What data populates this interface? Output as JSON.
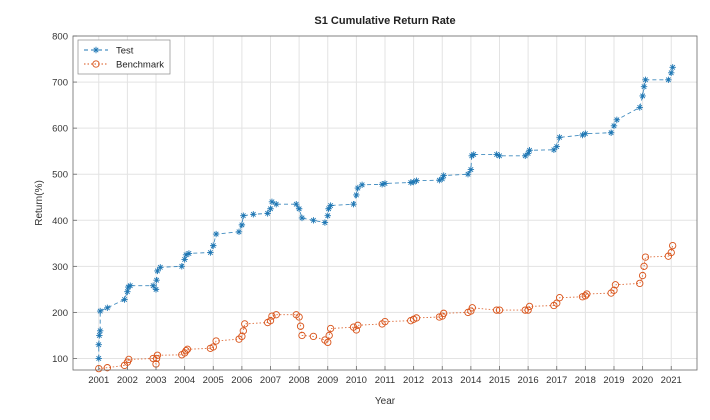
{
  "chart_data": {
    "type": "line",
    "title": "S1 Cumulative Return Rate",
    "xlabel": "Year",
    "ylabel": "Return(%)",
    "xlim": [
      2000.1,
      2021.9
    ],
    "ylim": [
      75,
      800
    ],
    "xticks": [
      2001,
      2002,
      2003,
      2004,
      2005,
      2006,
      2007,
      2008,
      2009,
      2010,
      2011,
      2012,
      2013,
      2014,
      2015,
      2016,
      2017,
      2018,
      2019,
      2020,
      2021
    ],
    "yticks": [
      100,
      200,
      300,
      400,
      500,
      600,
      700,
      800
    ],
    "grid": true,
    "legend_position": "top-left",
    "series": [
      {
        "name": "Test",
        "color": "#1f77b4",
        "marker": "star",
        "line": "dashed",
        "points": [
          [
            2001.0,
            100
          ],
          [
            2001.0,
            130
          ],
          [
            2001.02,
            150
          ],
          [
            2001.05,
            160
          ],
          [
            2001.05,
            203
          ],
          [
            2001.3,
            210
          ],
          [
            2001.9,
            228
          ],
          [
            2002.0,
            245
          ],
          [
            2002.03,
            255
          ],
          [
            2002.1,
            258
          ],
          [
            2002.9,
            258
          ],
          [
            2003.0,
            250
          ],
          [
            2003.02,
            270
          ],
          [
            2003.05,
            290
          ],
          [
            2003.15,
            298
          ],
          [
            2003.9,
            300
          ],
          [
            2004.0,
            315
          ],
          [
            2004.05,
            325
          ],
          [
            2004.15,
            328
          ],
          [
            2004.9,
            330
          ],
          [
            2005.0,
            345
          ],
          [
            2005.1,
            370
          ],
          [
            2005.9,
            375
          ],
          [
            2006.0,
            390
          ],
          [
            2006.05,
            410
          ],
          [
            2006.4,
            413
          ],
          [
            2006.9,
            415
          ],
          [
            2007.0,
            425
          ],
          [
            2007.05,
            440
          ],
          [
            2007.2,
            435
          ],
          [
            2007.9,
            435
          ],
          [
            2008.0,
            425
          ],
          [
            2008.1,
            405
          ],
          [
            2008.5,
            400
          ],
          [
            2008.9,
            395
          ],
          [
            2009.0,
            410
          ],
          [
            2009.03,
            425
          ],
          [
            2009.1,
            432
          ],
          [
            2009.9,
            435
          ],
          [
            2010.0,
            455
          ],
          [
            2010.05,
            470
          ],
          [
            2010.2,
            477
          ],
          [
            2010.9,
            478
          ],
          [
            2011.0,
            480
          ],
          [
            2011.9,
            482
          ],
          [
            2012.0,
            483
          ],
          [
            2012.1,
            486
          ],
          [
            2012.9,
            487
          ],
          [
            2013.0,
            490
          ],
          [
            2013.05,
            497
          ],
          [
            2013.9,
            500
          ],
          [
            2014.0,
            510
          ],
          [
            2014.03,
            540
          ],
          [
            2014.1,
            543
          ],
          [
            2014.9,
            543
          ],
          [
            2015.0,
            540
          ],
          [
            2015.9,
            540
          ],
          [
            2016.0,
            545
          ],
          [
            2016.05,
            552
          ],
          [
            2016.9,
            553
          ],
          [
            2017.0,
            560
          ],
          [
            2017.1,
            580
          ],
          [
            2017.9,
            585
          ],
          [
            2018.0,
            588
          ],
          [
            2018.9,
            590
          ],
          [
            2019.0,
            605
          ],
          [
            2019.1,
            618
          ],
          [
            2019.9,
            645
          ],
          [
            2020.0,
            670
          ],
          [
            2020.05,
            690
          ],
          [
            2020.1,
            705
          ],
          [
            2020.9,
            705
          ],
          [
            2021.0,
            720
          ],
          [
            2021.05,
            732
          ]
        ]
      },
      {
        "name": "Benchmark",
        "color": "#d95319",
        "marker": "circle",
        "line": "dotted",
        "points": [
          [
            2001.0,
            78
          ],
          [
            2001.3,
            80
          ],
          [
            2001.9,
            85
          ],
          [
            2002.0,
            92
          ],
          [
            2002.05,
            98
          ],
          [
            2002.9,
            100
          ],
          [
            2003.0,
            88
          ],
          [
            2003.02,
            100
          ],
          [
            2003.05,
            107
          ],
          [
            2003.9,
            108
          ],
          [
            2004.0,
            112
          ],
          [
            2004.05,
            117
          ],
          [
            2004.1,
            120
          ],
          [
            2004.9,
            122
          ],
          [
            2005.0,
            125
          ],
          [
            2005.1,
            138
          ],
          [
            2005.9,
            142
          ],
          [
            2006.0,
            148
          ],
          [
            2006.05,
            160
          ],
          [
            2006.1,
            175
          ],
          [
            2006.9,
            178
          ],
          [
            2007.0,
            182
          ],
          [
            2007.05,
            192
          ],
          [
            2007.2,
            195
          ],
          [
            2007.9,
            195
          ],
          [
            2008.0,
            190
          ],
          [
            2008.05,
            170
          ],
          [
            2008.1,
            150
          ],
          [
            2008.5,
            148
          ],
          [
            2008.9,
            140
          ],
          [
            2009.0,
            135
          ],
          [
            2009.05,
            150
          ],
          [
            2009.1,
            165
          ],
          [
            2009.9,
            168
          ],
          [
            2010.0,
            162
          ],
          [
            2010.05,
            172
          ],
          [
            2010.9,
            175
          ],
          [
            2011.0,
            180
          ],
          [
            2011.9,
            182
          ],
          [
            2012.0,
            185
          ],
          [
            2012.1,
            188
          ],
          [
            2012.9,
            190
          ],
          [
            2013.0,
            192
          ],
          [
            2013.05,
            198
          ],
          [
            2013.9,
            200
          ],
          [
            2014.0,
            203
          ],
          [
            2014.05,
            210
          ],
          [
            2014.9,
            205
          ],
          [
            2015.0,
            205
          ],
          [
            2015.9,
            205
          ],
          [
            2016.0,
            205
          ],
          [
            2016.05,
            213
          ],
          [
            2016.9,
            215
          ],
          [
            2017.0,
            220
          ],
          [
            2017.1,
            232
          ],
          [
            2017.9,
            234
          ],
          [
            2018.0,
            236
          ],
          [
            2018.05,
            240
          ],
          [
            2018.9,
            242
          ],
          [
            2019.0,
            248
          ],
          [
            2019.05,
            260
          ],
          [
            2019.9,
            263
          ],
          [
            2020.0,
            280
          ],
          [
            2020.05,
            300
          ],
          [
            2020.1,
            320
          ],
          [
            2020.9,
            322
          ],
          [
            2021.0,
            330
          ],
          [
            2021.05,
            345
          ]
        ]
      }
    ]
  }
}
